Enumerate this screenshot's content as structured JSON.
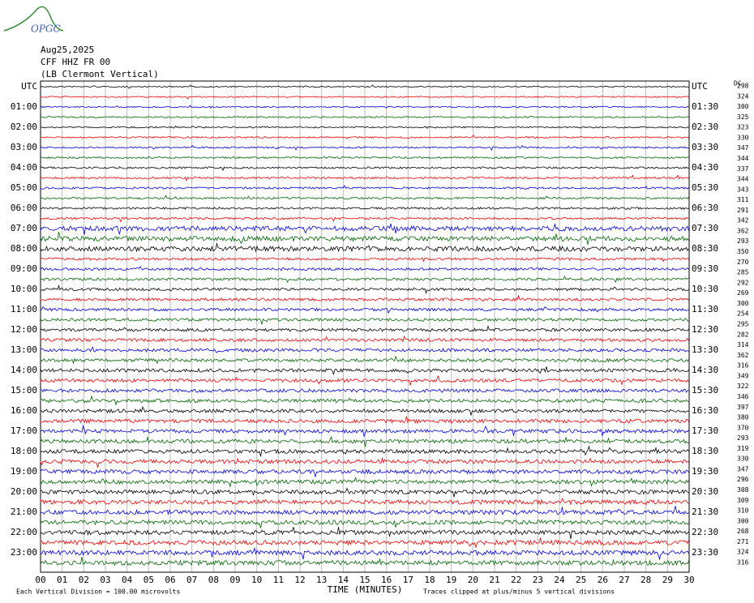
{
  "logo": "OPGC",
  "header": {
    "date": "Aug25,2025",
    "station": "CFF HHZ FR 00",
    "location": "(LB Clermont Vertical)",
    "dc_label": "DC"
  },
  "left_labels": [
    "UTC",
    "01:00",
    "02:00",
    "03:00",
    "04:00",
    "05:00",
    "06:00",
    "07:00",
    "08:00",
    "09:00",
    "10:00",
    "11:00",
    "12:00",
    "13:00",
    "14:00",
    "15:00",
    "16:00",
    "17:00",
    "18:00",
    "19:00",
    "20:00",
    "21:00",
    "22:00",
    "23:00"
  ],
  "right_labels": [
    "UTC",
    "01:30",
    "02:30",
    "03:30",
    "04:30",
    "05:30",
    "06:30",
    "07:30",
    "08:30",
    "09:30",
    "10:30",
    "11:30",
    "12:30",
    "13:30",
    "14:30",
    "15:30",
    "16:30",
    "17:30",
    "18:30",
    "19:30",
    "20:30",
    "21:30",
    "22:30",
    "23:30"
  ],
  "dc_values": [
    "298",
    "324",
    "300",
    "325",
    "323",
    "330",
    "347",
    "344",
    "337",
    "344",
    "343",
    "311",
    "291",
    "342",
    "362",
    "293",
    "350",
    "270",
    "285",
    "292",
    "269",
    "300",
    "254",
    "295",
    "282",
    "314",
    "362",
    "316",
    "349",
    "322",
    "346",
    "397",
    "380",
    "370",
    "293",
    "319",
    "330",
    "347",
    "296",
    "308",
    "309",
    "310",
    "300",
    "268",
    "271",
    "324",
    "316"
  ],
  "x_ticks": [
    "00",
    "01",
    "02",
    "03",
    "04",
    "05",
    "06",
    "07",
    "08",
    "09",
    "10",
    "11",
    "12",
    "13",
    "14",
    "15",
    "16",
    "17",
    "18",
    "19",
    "20",
    "21",
    "22",
    "23",
    "24",
    "25",
    "26",
    "27",
    "28",
    "29",
    "30"
  ],
  "x_label": "TIME (MINUTES)",
  "footer": {
    "scale": "Each Vertical Division =  100.00 microvolts",
    "clip": "Traces clipped at plus/minus 5 vertical divisions"
  }
}
